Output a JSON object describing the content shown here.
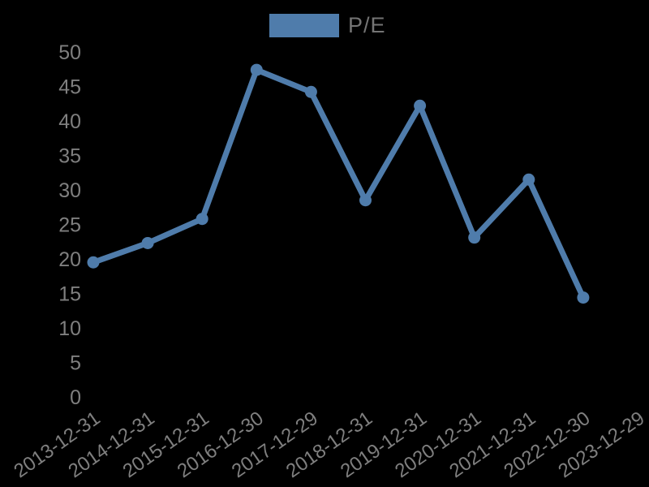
{
  "legend": {
    "label": "P/E",
    "swatch_color": "#4f7cab"
  },
  "chart_data": {
    "type": "line",
    "title": "",
    "xlabel": "",
    "ylabel": "",
    "categories": [
      "2013-12-31",
      "2014-12-31",
      "2015-12-31",
      "2016-12-30",
      "2017-12-29",
      "2018-12-31",
      "2019-12-31",
      "2020-12-31",
      "2021-12-31",
      "2022-12-30",
      "2023-12-29"
    ],
    "series": [
      {
        "name": "P/E",
        "color": "#4f7cab",
        "values": [
          19.5,
          22.3,
          25.8,
          47.4,
          44.2,
          28.5,
          42.2,
          23.1,
          31.5,
          14.4,
          null
        ]
      }
    ],
    "y_axis": {
      "min": 0,
      "max": 50,
      "tick_step": 5,
      "ticks": [
        0,
        5,
        10,
        15,
        20,
        25,
        30,
        35,
        40,
        45,
        50
      ]
    },
    "x_tick_rotation_deg": -35,
    "grid": false,
    "axis_lines": false,
    "legend_position": "top-center",
    "text_color": "#7f7f7f",
    "background_color": "#000000",
    "marker": "circle",
    "line_width": 7
  }
}
